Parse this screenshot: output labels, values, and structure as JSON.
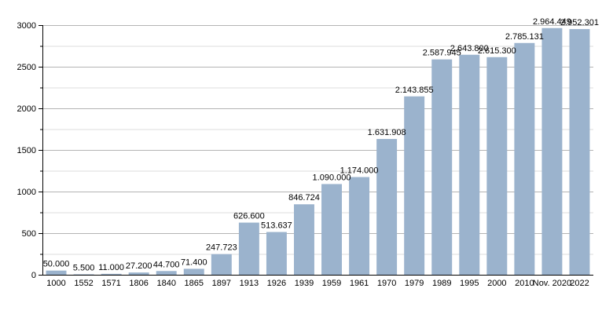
{
  "chart_data": {
    "type": "bar",
    "categories": [
      "1000",
      "1552",
      "1571",
      "1806",
      "1840",
      "1865",
      "1897",
      "1913",
      "1926",
      "1939",
      "1959",
      "1961",
      "1970",
      "1979",
      "1989",
      "1995",
      "2000",
      "2010",
      "Nov. 2020",
      "2022"
    ],
    "values": [
      50.0,
      5.5,
      11.0,
      27.2,
      44.7,
      71.4,
      247.723,
      626.6,
      513.637,
      846.724,
      1090.0,
      1174.0,
      1631.908,
      2143.855,
      2587.945,
      2643.8,
      2615.3,
      2785.131,
      2964.449,
      2952.301
    ],
    "data_labels": [
      "50.000",
      "5.500",
      "11.000",
      "27.200",
      "44.700",
      "71.400",
      "247.723",
      "626.600",
      "513.637",
      "846.724",
      "1.090.000",
      "1.174.000",
      "1.631.908",
      "2.143.855",
      "2.587.945",
      "2.643.800",
      "2.615.300",
      "2.785.131",
      "2.964.449",
      "2.952.301"
    ],
    "title": "",
    "xlabel": "",
    "ylabel": "",
    "ylim": [
      0,
      3000
    ],
    "yticks": [
      "0",
      "500",
      "1000",
      "1500",
      "2000",
      "2500",
      "3000"
    ],
    "grid": true,
    "colors": {
      "bar": "#9bb3cd",
      "grid": "#b4b4b4",
      "axis": "#000000"
    }
  }
}
